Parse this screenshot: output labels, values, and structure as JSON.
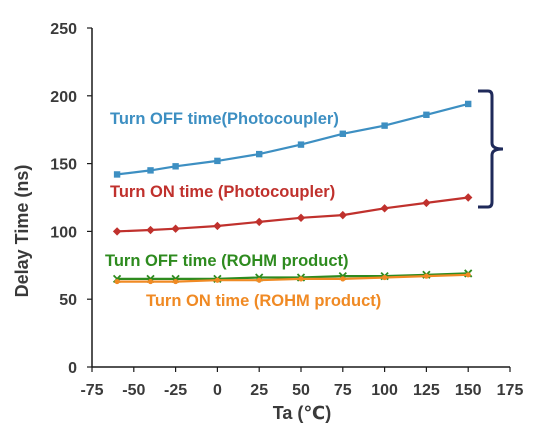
{
  "chart_data": {
    "type": "line",
    "xlabel": "Ta (℃)",
    "ylabel": "Delay Time (ns)",
    "xlim": [
      -75,
      175
    ],
    "ylim": [
      0,
      250
    ],
    "x_ticks": [
      "-75",
      "-50",
      "-25",
      "0",
      "25",
      "50",
      "75",
      "100",
      "125",
      "150",
      "175"
    ],
    "y_ticks": [
      "0",
      "50",
      "100",
      "150",
      "200",
      "250"
    ],
    "grid": false,
    "legend": "none (series labelled directly on the plot)",
    "x": [
      -60,
      -40,
      -25,
      0,
      25,
      50,
      75,
      100,
      125,
      150
    ],
    "series": [
      {
        "name": "Turn OFF time(Photocoupler)",
        "color": "#3d8fc2",
        "marker": "square",
        "values": [
          142,
          145,
          148,
          152,
          157,
          164,
          172,
          178,
          186,
          194
        ]
      },
      {
        "name": "Turn ON time (Photocoupler)",
        "color": "#c0312d",
        "marker": "diamond",
        "values": [
          100,
          101,
          102,
          104,
          107,
          110,
          112,
          117,
          121,
          125
        ]
      },
      {
        "name": "Turn OFF time (ROHM product)",
        "color": "#2e8b1f",
        "marker": "x",
        "values": [
          65,
          65,
          65,
          65,
          66,
          66,
          67,
          67,
          68,
          69
        ]
      },
      {
        "name": "Turn ON time (ROHM product)",
        "color": "#f08a24",
        "marker": "circle",
        "values": [
          63,
          63,
          63,
          64,
          64,
          65,
          65,
          66,
          67,
          68
        ]
      }
    ],
    "annotation": {
      "type": "brace",
      "spans_series": [
        "Turn OFF time(Photocoupler)",
        "Turn ON time (Photocoupler)"
      ],
      "color": "#1f2a5a"
    }
  }
}
